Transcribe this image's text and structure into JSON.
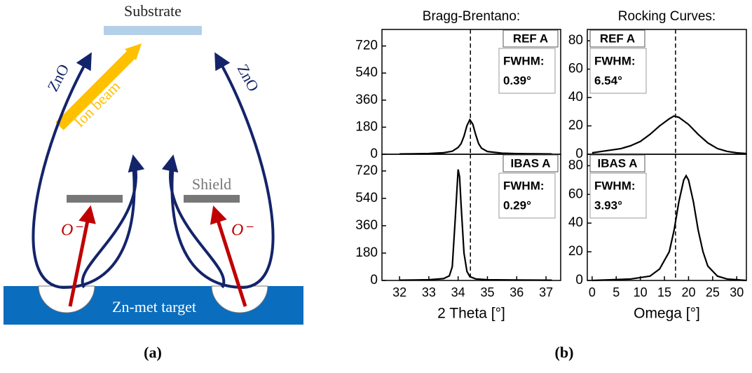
{
  "diagram": {
    "substrate": "Substrate",
    "zno_left": "ZnO",
    "zno_right": "ZnO",
    "ion_beam": "Ion beam",
    "shield": "Shield",
    "o_left": "O⁻",
    "o_right": "O⁻",
    "target": "Zn-met target",
    "caption": "(a)"
  },
  "caption_b": "(b)",
  "chart_data": [
    {
      "type": "line",
      "title": "Bragg-Brentano:",
      "sample": "REF A",
      "fwhm_label": "FWHM:",
      "fwhm_value": "0.39°",
      "color": "#000000",
      "xlim": [
        31.4,
        37.5
      ],
      "ylim": [
        0,
        830
      ],
      "yticks": [
        0,
        180,
        360,
        540,
        720
      ],
      "ref_line": 34.42,
      "x": [
        32,
        32.5,
        33,
        33.5,
        33.8,
        34,
        34.1,
        34.2,
        34.3,
        34.4,
        34.5,
        34.6,
        34.7,
        34.8,
        35,
        35.5,
        36,
        36.5,
        37.2
      ],
      "values": [
        2,
        3,
        5,
        10,
        20,
        45,
        70,
        120,
        190,
        230,
        200,
        130,
        70,
        40,
        18,
        7,
        4,
        3,
        2
      ]
    },
    {
      "type": "line",
      "title": "Rocking Curves:",
      "sample": "REF A",
      "fwhm_label": "FWHM:",
      "fwhm_value": "6.54°",
      "color": "#000000",
      "xlim": [
        -1,
        32
      ],
      "ylim": [
        0,
        88
      ],
      "yticks": [
        0,
        20,
        40,
        60,
        80
      ],
      "ref_line": 17.3,
      "x": [
        0,
        2,
        4,
        6,
        8,
        10,
        12,
        14,
        16,
        17,
        18,
        20,
        22,
        24,
        26,
        28,
        30,
        32
      ],
      "values": [
        1,
        2,
        3,
        4,
        6,
        9,
        14,
        20,
        25,
        27,
        26,
        21,
        14,
        8,
        4,
        2,
        1,
        0.5
      ]
    },
    {
      "type": "line",
      "sample": "IBAS A",
      "fwhm_label": "FWHM:",
      "fwhm_value": "0.29°",
      "color": "#000000",
      "xlim": [
        31.4,
        37.5
      ],
      "ylim": [
        0,
        830
      ],
      "yticks": [
        0,
        180,
        360,
        540,
        720
      ],
      "xticks": [
        32,
        33,
        34,
        35,
        36,
        37
      ],
      "xlabel": "2 Theta [°]",
      "ref_line": 34.42,
      "x": [
        32,
        32.5,
        33,
        33.5,
        33.7,
        33.8,
        33.9,
        34.0,
        34.05,
        34.1,
        34.2,
        34.3,
        34.4,
        34.6,
        35,
        36,
        37.2
      ],
      "values": [
        2,
        3,
        5,
        12,
        30,
        90,
        400,
        730,
        680,
        500,
        180,
        60,
        25,
        10,
        5,
        3,
        2
      ]
    },
    {
      "type": "line",
      "sample": "IBAS A",
      "fwhm_label": "FWHM:",
      "fwhm_value": "3.93°",
      "color": "#000000",
      "xlim": [
        -1,
        32
      ],
      "ylim": [
        0,
        88
      ],
      "yticks": [
        0,
        20,
        40,
        60,
        80
      ],
      "xticks": [
        0,
        5,
        10,
        15,
        20,
        25,
        30
      ],
      "xlabel": "Omega [°]",
      "ref_line": 17.3,
      "x": [
        0,
        8,
        12,
        14,
        16,
        17,
        18,
        19,
        19.5,
        20,
        21,
        22,
        23,
        24,
        26,
        28,
        32
      ],
      "values": [
        0,
        1,
        3,
        8,
        20,
        35,
        55,
        70,
        73,
        70,
        55,
        35,
        20,
        10,
        3,
        1,
        0
      ]
    }
  ]
}
